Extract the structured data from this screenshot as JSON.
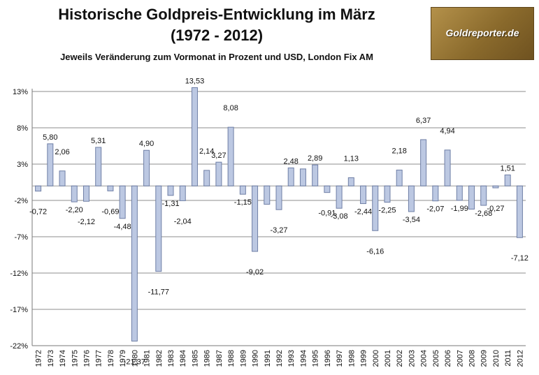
{
  "header": {
    "title_line1": "Historische Goldpreis-Entwicklung im März",
    "title_line2": "(1972 - 2012)",
    "subtitle": "Jeweils Veränderung zum Vormonat in Prozent und USD, London Fix AM"
  },
  "logo": {
    "text": "Goldreporter.de"
  },
  "colors": {
    "bar_fill": "#bcc8e2",
    "bar_stroke": "#6f7fa6",
    "grid": "#8c8c8c"
  },
  "chart_data": {
    "type": "bar",
    "title": "Historische Goldpreis-Entwicklung im März (1972 - 2012)",
    "subtitle": "Jeweils Veränderung zum Vormonat in Prozent und USD, London Fix AM",
    "xlabel": "",
    "ylabel": "",
    "ylim": [
      -22,
      13
    ],
    "yticks": [
      13,
      8,
      3,
      -2,
      -7,
      -12,
      -17,
      -22
    ],
    "ytick_labels": [
      "13%",
      "8%",
      "3%",
      "-2%",
      "-7%",
      "-12%",
      "-17%",
      "-22%"
    ],
    "categories": [
      "1972",
      "1973",
      "1974",
      "1975",
      "1976",
      "1977",
      "1978",
      "1979",
      "1980",
      "1981",
      "1982",
      "1983",
      "1984",
      "1985",
      "1986",
      "1987",
      "1988",
      "1989",
      "1990",
      "1991",
      "1992",
      "1993",
      "1994",
      "1995",
      "1996",
      "1997",
      "1998",
      "1999",
      "2000",
      "2001",
      "2002",
      "2003",
      "2004",
      "2005",
      "2006",
      "2007",
      "2008",
      "2009",
      "2010",
      "2011",
      "2012"
    ],
    "values": [
      -0.72,
      5.8,
      2.06,
      -2.2,
      -2.12,
      5.31,
      -0.69,
      -4.48,
      -21.37,
      4.9,
      -11.77,
      -1.31,
      -2.04,
      13.53,
      2.14,
      3.27,
      8.08,
      -1.15,
      -9.02,
      -2.53,
      -3.27,
      2.48,
      2.34,
      2.89,
      -0.91,
      -3.08,
      1.13,
      -2.44,
      -6.16,
      -2.25,
      2.18,
      -3.54,
      6.37,
      -2.07,
      4.94,
      -1.99,
      -3.2,
      -2.68,
      -0.27,
      1.51,
      -7.12
    ],
    "labels": [
      "-0,72",
      "5,80",
      "2,06",
      "-2,20",
      "-2,12",
      "5,31",
      "-0,69",
      "-4,48",
      "-21,37",
      "4,90",
      "-11,77",
      "-1,31",
      "-2,04",
      "13,53",
      "2,14",
      "3,27",
      "8,08",
      "-1,15",
      "-9,02",
      "",
      "-3,27",
      "2,48",
      "",
      "2,89",
      "-0,91",
      "-3,08",
      "1,13",
      "-2,44",
      "-6,16",
      "-2,25",
      "2,18",
      "-3,54",
      "6,37",
      "-2,07",
      "4,94",
      "-1,99",
      "",
      "-2,68",
      "-0,27",
      "1,51",
      "-7,12"
    ]
  }
}
